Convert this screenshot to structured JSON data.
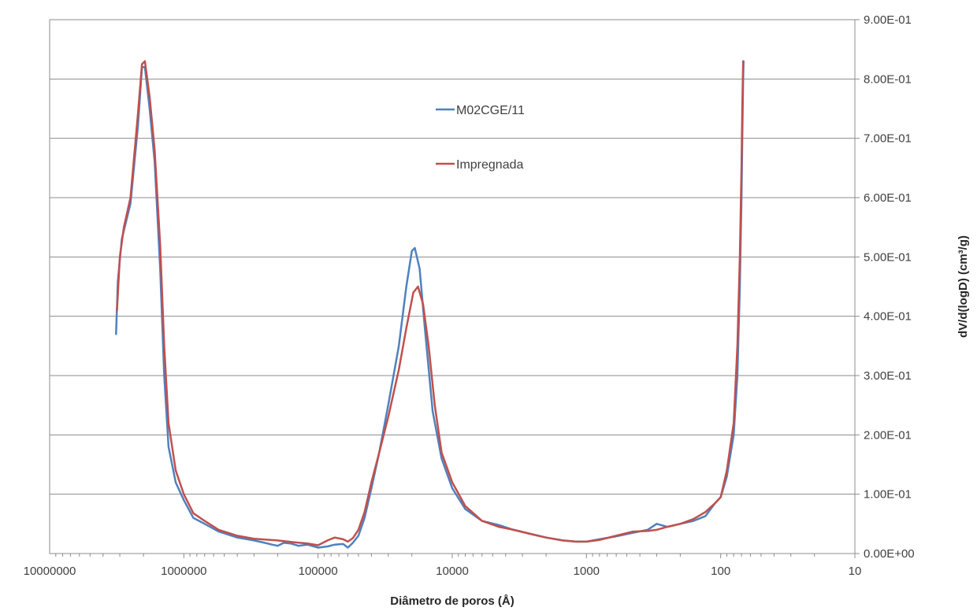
{
  "chart_data": {
    "type": "line",
    "title": "",
    "xlabel": "Diâmetro de poros (Å)",
    "ylabel": "dV/d(logD) (cm³/g)",
    "x_scale": "log",
    "x_reversed": true,
    "xlim": [
      10,
      10000000
    ],
    "ylim": [
      0,
      0.9
    ],
    "y_axis_side": "right",
    "grid": "horizontal",
    "legend_position": "inside-top-center",
    "x_ticks": [
      {
        "value": 10000000,
        "label": "10000000"
      },
      {
        "value": 1000000,
        "label": "1000000"
      },
      {
        "value": 100000,
        "label": "100000"
      },
      {
        "value": 10000,
        "label": "10000"
      },
      {
        "value": 1000,
        "label": "1000"
      },
      {
        "value": 100,
        "label": "100"
      },
      {
        "value": 10,
        "label": "10"
      }
    ],
    "y_ticks": [
      {
        "value": 0.0,
        "label": "0.00E+00"
      },
      {
        "value": 0.1,
        "label": "1.00E-01"
      },
      {
        "value": 0.2,
        "label": "2.00E-01"
      },
      {
        "value": 0.3,
        "label": "3.00E-01"
      },
      {
        "value": 0.4,
        "label": "4.00E-01"
      },
      {
        "value": 0.5,
        "label": "5.00E-01"
      },
      {
        "value": 0.6,
        "label": "6.00E-01"
      },
      {
        "value": 0.7,
        "label": "7.00E-01"
      },
      {
        "value": 0.8,
        "label": "8.00E-01"
      },
      {
        "value": 0.9,
        "label": "9.00E-01"
      }
    ],
    "series": [
      {
        "name": "M02CGE/11",
        "color": "#4f81bd",
        "points": [
          [
            3200000,
            0.37
          ],
          [
            3100000,
            0.46
          ],
          [
            2900000,
            0.53
          ],
          [
            2500000,
            0.59
          ],
          [
            2200000,
            0.72
          ],
          [
            2050000,
            0.82
          ],
          [
            1950000,
            0.82
          ],
          [
            1800000,
            0.75
          ],
          [
            1650000,
            0.66
          ],
          [
            1500000,
            0.48
          ],
          [
            1400000,
            0.3
          ],
          [
            1300000,
            0.18
          ],
          [
            1150000,
            0.12
          ],
          [
            1000000,
            0.09
          ],
          [
            850000,
            0.06
          ],
          [
            700000,
            0.05
          ],
          [
            550000,
            0.037
          ],
          [
            400000,
            0.027
          ],
          [
            300000,
            0.022
          ],
          [
            250000,
            0.018
          ],
          [
            220000,
            0.015
          ],
          [
            200000,
            0.013
          ],
          [
            180000,
            0.018
          ],
          [
            160000,
            0.017
          ],
          [
            140000,
            0.013
          ],
          [
            120000,
            0.015
          ],
          [
            100000,
            0.01
          ],
          [
            85000,
            0.012
          ],
          [
            75000,
            0.015
          ],
          [
            65000,
            0.016
          ],
          [
            60000,
            0.01
          ],
          [
            55000,
            0.018
          ],
          [
            50000,
            0.03
          ],
          [
            45000,
            0.06
          ],
          [
            40000,
            0.11
          ],
          [
            35000,
            0.17
          ],
          [
            30000,
            0.25
          ],
          [
            25000,
            0.35
          ],
          [
            22000,
            0.45
          ],
          [
            20000,
            0.51
          ],
          [
            19000,
            0.515
          ],
          [
            17500,
            0.48
          ],
          [
            16000,
            0.38
          ],
          [
            14000,
            0.24
          ],
          [
            12000,
            0.16
          ],
          [
            10000,
            0.11
          ],
          [
            8000,
            0.075
          ],
          [
            6000,
            0.055
          ],
          [
            4500,
            0.048
          ],
          [
            3500,
            0.04
          ],
          [
            2500,
            0.032
          ],
          [
            2000,
            0.027
          ],
          [
            1500,
            0.022
          ],
          [
            1200,
            0.02
          ],
          [
            1000,
            0.02
          ],
          [
            800,
            0.024
          ],
          [
            600,
            0.029
          ],
          [
            450,
            0.035
          ],
          [
            350,
            0.04
          ],
          [
            300,
            0.05
          ],
          [
            250,
            0.045
          ],
          [
            200,
            0.05
          ],
          [
            160,
            0.055
          ],
          [
            130,
            0.063
          ],
          [
            110,
            0.085
          ],
          [
            100,
            0.095
          ],
          [
            90,
            0.13
          ],
          [
            80,
            0.2
          ],
          [
            75,
            0.3
          ],
          [
            72,
            0.45
          ],
          [
            70,
            0.6
          ],
          [
            69,
            0.7
          ],
          [
            68,
            0.8
          ],
          [
            67.5,
            0.83
          ]
        ]
      },
      {
        "name": "Impregnada",
        "color": "#c0504d",
        "points": [
          [
            3150000,
            0.41
          ],
          [
            3000000,
            0.5
          ],
          [
            2800000,
            0.55
          ],
          [
            2500000,
            0.6
          ],
          [
            2200000,
            0.74
          ],
          [
            2050000,
            0.825
          ],
          [
            1950000,
            0.83
          ],
          [
            1800000,
            0.77
          ],
          [
            1650000,
            0.68
          ],
          [
            1500000,
            0.52
          ],
          [
            1400000,
            0.35
          ],
          [
            1300000,
            0.22
          ],
          [
            1150000,
            0.14
          ],
          [
            1000000,
            0.1
          ],
          [
            850000,
            0.068
          ],
          [
            700000,
            0.055
          ],
          [
            550000,
            0.04
          ],
          [
            400000,
            0.03
          ],
          [
            300000,
            0.025
          ],
          [
            200000,
            0.022
          ],
          [
            150000,
            0.019
          ],
          [
            120000,
            0.017
          ],
          [
            100000,
            0.014
          ],
          [
            85000,
            0.022
          ],
          [
            75000,
            0.027
          ],
          [
            65000,
            0.024
          ],
          [
            60000,
            0.02
          ],
          [
            55000,
            0.026
          ],
          [
            50000,
            0.04
          ],
          [
            45000,
            0.07
          ],
          [
            40000,
            0.12
          ],
          [
            35000,
            0.17
          ],
          [
            30000,
            0.23
          ],
          [
            25000,
            0.31
          ],
          [
            22000,
            0.38
          ],
          [
            19500,
            0.44
          ],
          [
            18000,
            0.45
          ],
          [
            16500,
            0.42
          ],
          [
            15000,
            0.35
          ],
          [
            13500,
            0.25
          ],
          [
            12000,
            0.17
          ],
          [
            10000,
            0.12
          ],
          [
            8000,
            0.08
          ],
          [
            6000,
            0.055
          ],
          [
            4500,
            0.045
          ],
          [
            3500,
            0.04
          ],
          [
            2500,
            0.032
          ],
          [
            2000,
            0.027
          ],
          [
            1500,
            0.022
          ],
          [
            1200,
            0.02
          ],
          [
            1000,
            0.02
          ],
          [
            800,
            0.023
          ],
          [
            600,
            0.03
          ],
          [
            450,
            0.037
          ],
          [
            350,
            0.038
          ],
          [
            300,
            0.04
          ],
          [
            250,
            0.045
          ],
          [
            200,
            0.05
          ],
          [
            160,
            0.058
          ],
          [
            130,
            0.07
          ],
          [
            110,
            0.085
          ],
          [
            100,
            0.095
          ],
          [
            90,
            0.14
          ],
          [
            80,
            0.22
          ],
          [
            75,
            0.35
          ],
          [
            72,
            0.5
          ],
          [
            70,
            0.65
          ],
          [
            69,
            0.75
          ],
          [
            68,
            0.83
          ]
        ]
      }
    ]
  }
}
